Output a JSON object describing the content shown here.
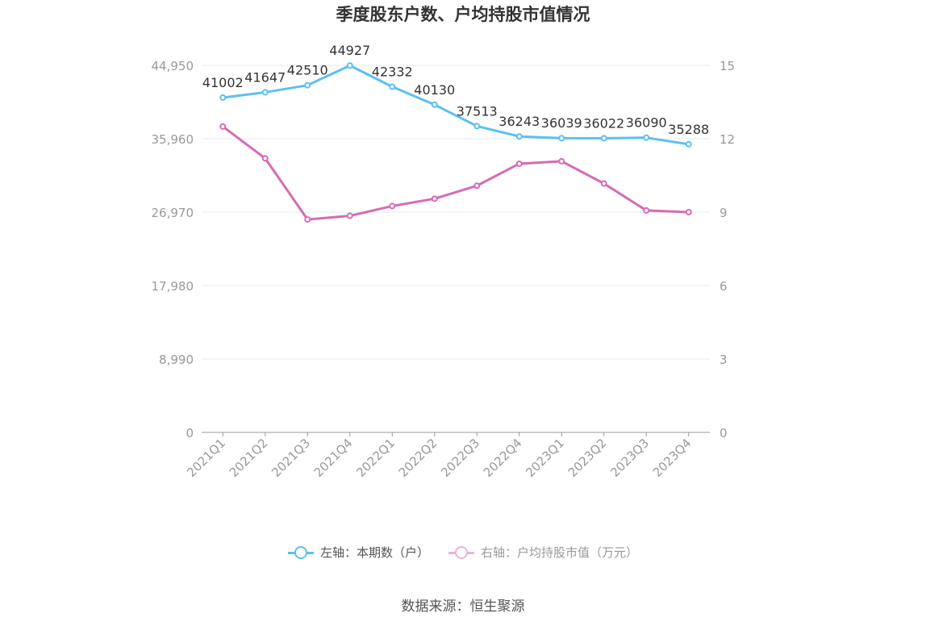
{
  "title": "季度股东户数、户均持股市值情况",
  "source_text": "数据来源：恒生聚源",
  "colors": {
    "series1": "#5BC0F0",
    "series2": "#D66BB5",
    "grid": "#E3E8F0",
    "axis_text": "#999999",
    "label_text": "#333333"
  },
  "chart_data": {
    "type": "line",
    "categories": [
      "2021Q1",
      "2021Q2",
      "2021Q3",
      "2021Q4",
      "2022Q1",
      "2022Q2",
      "2022Q3",
      "2022Q4",
      "2023Q1",
      "2023Q2",
      "2023Q3",
      "2023Q4"
    ],
    "y_left": {
      "min": 0,
      "max": 44950,
      "ticks": [
        0,
        8990,
        17980,
        26970,
        35960,
        44950
      ],
      "tick_labels": [
        "0",
        "8,990",
        "17,980",
        "26,970",
        "35,960",
        "44,950"
      ]
    },
    "y_right": {
      "min": 0,
      "max": 15,
      "ticks": [
        0,
        3,
        6,
        9,
        12,
        15
      ],
      "tick_labels": [
        "0",
        "3",
        "6",
        "9",
        "12",
        "15"
      ]
    },
    "series": [
      {
        "name": "左轴：本期数（户）",
        "axis": "left",
        "color": "#5BC0F0",
        "show_labels": true,
        "values": [
          41002,
          41647,
          42510,
          44927,
          42332,
          40130,
          37513,
          36243,
          36039,
          36022,
          36090,
          35288
        ]
      },
      {
        "name": "右轴：户均持股市值（万元）",
        "axis": "right",
        "color": "#D66BB5",
        "show_labels": false,
        "values": [
          12.5,
          11.2,
          8.7,
          8.85,
          9.25,
          9.55,
          10.08,
          10.98,
          11.08,
          10.17,
          9.07,
          9.0
        ]
      }
    ],
    "grid": true,
    "legend_position": "bottom"
  }
}
